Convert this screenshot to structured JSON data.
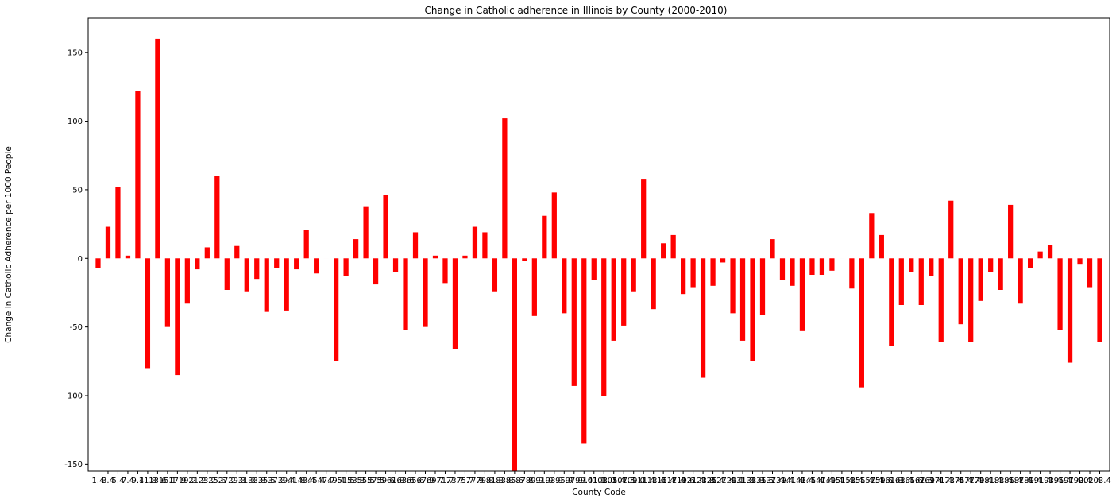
{
  "chart_data": {
    "type": "bar",
    "title": "Change in Catholic adherence in Illinois by County (2000-2010)",
    "xlabel": "County Code",
    "ylabel": "Change in Catholic Adherence per 1000 People",
    "ylim": [
      -155,
      175
    ],
    "yticks": [
      -150,
      -100,
      -50,
      0,
      50,
      100,
      150
    ],
    "bar_color": "#ff0000",
    "grid": false,
    "legend": "none",
    "categories": [
      "1.4",
      "3.4",
      "5.4",
      "7.4",
      "9.4",
      "11.8",
      "13.6",
      "15.1",
      "17.9",
      "19.2",
      "21.2",
      "23.2",
      "25.6",
      "27.2",
      "29.3",
      "31.3",
      "33.8",
      "35.5",
      "37.3",
      "39.4",
      "41.8",
      "43.4",
      "45.4",
      "47.7",
      "49.4",
      "51.5",
      "53.8",
      "55.5",
      "57.5",
      "59.6",
      "61.8",
      "63.6",
      "65.6",
      "67.9",
      "69.7",
      "71.7",
      "73.7",
      "75.7",
      "77.9",
      "79.8",
      "81.8",
      "83.8",
      "85.6",
      "87.8",
      "89.9",
      "91.9",
      "93.9",
      "95.9",
      "97.9",
      "99.4",
      "101.1",
      "103.0",
      "105.4",
      "107.5",
      "109.0",
      "111.4",
      "113.4",
      "115.4",
      "117.4",
      "119.6",
      "121.4",
      "123.8",
      "125.4",
      "127.4",
      "129.1",
      "131.3",
      "133.8",
      "135.5",
      "137.4",
      "139.4",
      "141.4",
      "143.4",
      "145.4",
      "147.4",
      "149.4",
      "151.4",
      "153.4",
      "155.4",
      "157.4",
      "159.6",
      "161.8",
      "163.4",
      "165.6",
      "167.6",
      "169.4",
      "171.4",
      "173.4",
      "175.4",
      "177.4",
      "179.4",
      "181.4",
      "183.4",
      "185.4",
      "187.4",
      "189.4",
      "191.4",
      "193.4",
      "195.4",
      "197.4",
      "199.4",
      "201.4",
      "203.4"
    ],
    "values": [
      -7,
      23,
      52,
      2,
      122,
      -80,
      160,
      -50,
      -85,
      -33,
      -8,
      8,
      60,
      -23,
      9,
      -24,
      -15,
      -39,
      -7,
      -38,
      -8,
      21,
      -11,
      0,
      -75,
      -13,
      14,
      38,
      -19,
      46,
      -10,
      -52,
      19,
      -50,
      2,
      -18,
      -66,
      2,
      23,
      19,
      -24,
      102,
      -160,
      -2,
      -42,
      31,
      48,
      -40,
      -93,
      -135,
      -16,
      -100,
      -60,
      -49,
      -24,
      58,
      -37,
      11,
      17,
      -26,
      -21,
      -87,
      -20,
      -3,
      -40,
      -60,
      -75,
      -41,
      14,
      -16,
      -20,
      -53,
      -12,
      -12,
      -9,
      0,
      -22,
      -94,
      33,
      17,
      -64,
      -34,
      -10,
      -34,
      -13,
      -61,
      42,
      -48,
      -61,
      -31,
      -10,
      -23,
      39,
      -33,
      -7,
      5,
      10,
      -52,
      -76,
      -4,
      -21,
      -61
    ]
  }
}
